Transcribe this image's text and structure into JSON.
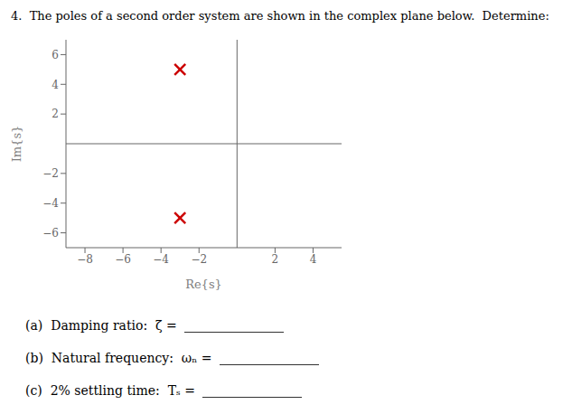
{
  "chart_data": {
    "type": "scatter",
    "title": "4.  The poles of a second order system are shown in the complex plane below.  Determine:",
    "x_label": "Re{s}",
    "y_label": "Im{s}",
    "x": [
      -3,
      -3
    ],
    "values": [
      5,
      -5
    ],
    "color": "#cc0000",
    "marker": "x",
    "xlim": [
      -9,
      5.5
    ],
    "ylim": [
      -7,
      7
    ],
    "xticks": [
      {
        "value": -8,
        "label": "−8"
      },
      {
        "value": -6,
        "label": "−6"
      },
      {
        "value": -4,
        "label": "−4"
      },
      {
        "value": -2,
        "label": "−2"
      },
      2,
      4
    ],
    "yticks": [
      {
        "value": -6,
        "label": "−6"
      },
      {
        "value": -4,
        "label": "−4"
      },
      {
        "value": -2,
        "label": "−2"
      },
      2,
      4,
      6
    ],
    "annotations": [
      "(a)  Damping ratio:  ζ = ",
      "(b)  Natural frequency:  ωₙ = ",
      "(c)  2% settling time:  Tₛ = "
    ]
  }
}
